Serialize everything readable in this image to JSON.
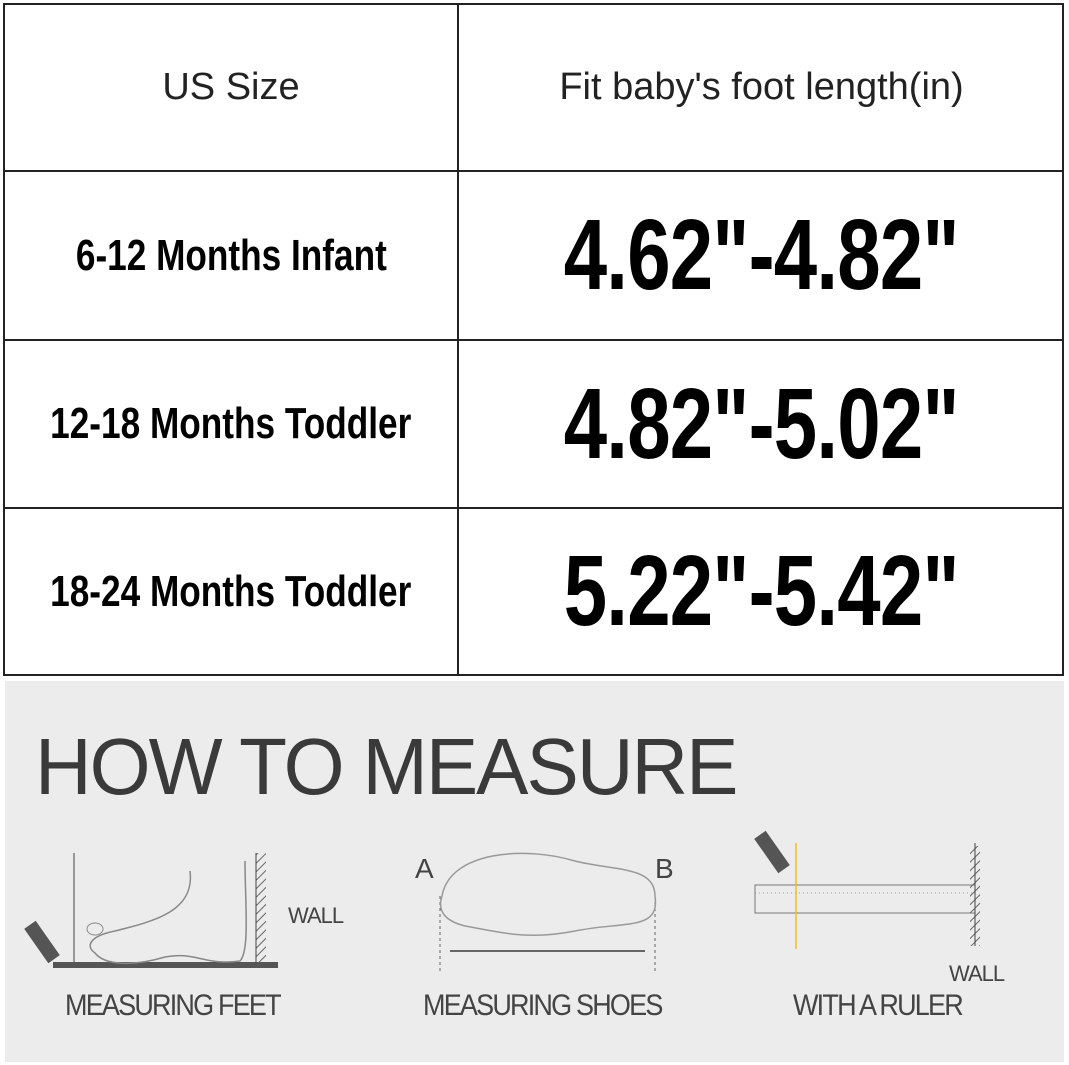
{
  "size_table": {
    "headers": [
      "US Size",
      "Fit baby's foot length(in)"
    ],
    "rows": [
      {
        "size": "6-12 Months Infant",
        "length": "4.62\"-4.82\""
      },
      {
        "size": "12-18 Months Toddler",
        "length": "4.82\"-5.02\""
      },
      {
        "size": "18-24 Months Toddler",
        "length": "5.22\"-5.42\""
      }
    ]
  },
  "how_to_measure": {
    "title": "HOW TO MEASURE",
    "wall_label_1": "WALL",
    "wall_label_2": "WALL",
    "point_a": "A",
    "point_b": "B",
    "captions": [
      "MEASURING FEET",
      "MEASURING SHOES",
      "WITH A RULER"
    ]
  },
  "colors": {
    "panel_bg": "#ececec",
    "ruler_line": "#f0c020"
  }
}
